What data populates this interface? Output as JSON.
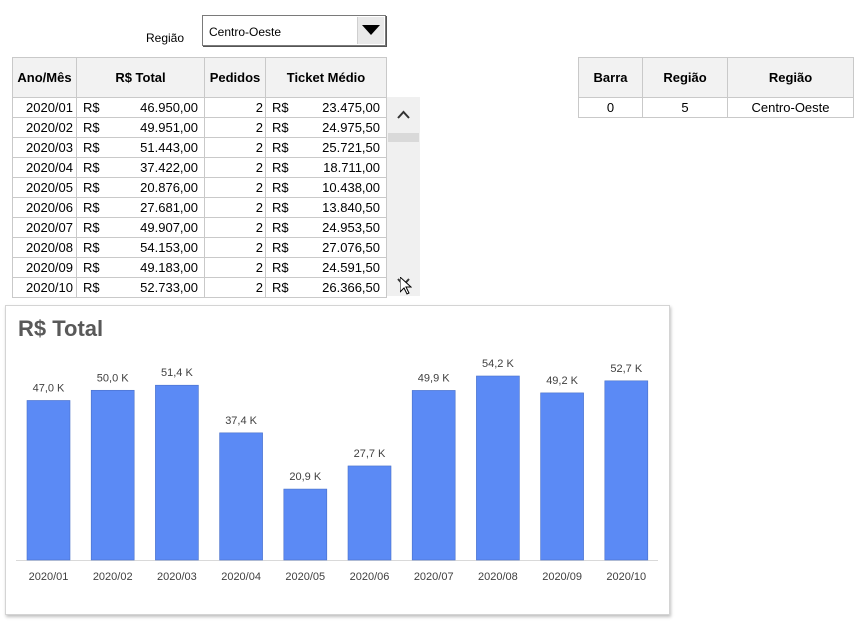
{
  "filter": {
    "label": "Região",
    "selected": "Centro-Oeste"
  },
  "main_table": {
    "headers": [
      "Ano/Mês",
      "R$ Total",
      "Pedidos",
      "Ticket Médio"
    ],
    "currency": "R$",
    "rows": [
      {
        "month": "2020/01",
        "total": "46.950,00",
        "orders": "2",
        "ticket": "23.475,00"
      },
      {
        "month": "2020/02",
        "total": "49.951,00",
        "orders": "2",
        "ticket": "24.975,50"
      },
      {
        "month": "2020/03",
        "total": "51.443,00",
        "orders": "2",
        "ticket": "25.721,50"
      },
      {
        "month": "2020/04",
        "total": "37.422,00",
        "orders": "2",
        "ticket": "18.711,00"
      },
      {
        "month": "2020/05",
        "total": "20.876,00",
        "orders": "2",
        "ticket": "10.438,00"
      },
      {
        "month": "2020/06",
        "total": "27.681,00",
        "orders": "2",
        "ticket": "13.840,50"
      },
      {
        "month": "2020/07",
        "total": "49.907,00",
        "orders": "2",
        "ticket": "24.953,50"
      },
      {
        "month": "2020/08",
        "total": "54.153,00",
        "orders": "2",
        "ticket": "27.076,50"
      },
      {
        "month": "2020/09",
        "total": "49.183,00",
        "orders": "2",
        "ticket": "24.591,50"
      },
      {
        "month": "2020/10",
        "total": "52.733,00",
        "orders": "2",
        "ticket": "26.366,50"
      }
    ]
  },
  "side_table": {
    "headers": [
      "Barra",
      "Região",
      "Região"
    ],
    "row": [
      "0",
      "5",
      "Centro-Oeste"
    ]
  },
  "chart_data": {
    "type": "bar",
    "title": "R$ Total",
    "categories": [
      "2020/01",
      "2020/02",
      "2020/03",
      "2020/04",
      "2020/05",
      "2020/06",
      "2020/07",
      "2020/08",
      "2020/09",
      "2020/10"
    ],
    "values": [
      46950,
      49951,
      51443,
      37422,
      20876,
      27681,
      49907,
      54153,
      49183,
      52733
    ],
    "data_labels": [
      "47,0 K",
      "50,0 K",
      "51,4 K",
      "37,4 K",
      "20,9 K",
      "27,7 K",
      "49,9 K",
      "54,2 K",
      "49,2 K",
      "52,7 K"
    ],
    "bar_color": "#5b8af5",
    "grid": false,
    "legend": "none"
  }
}
